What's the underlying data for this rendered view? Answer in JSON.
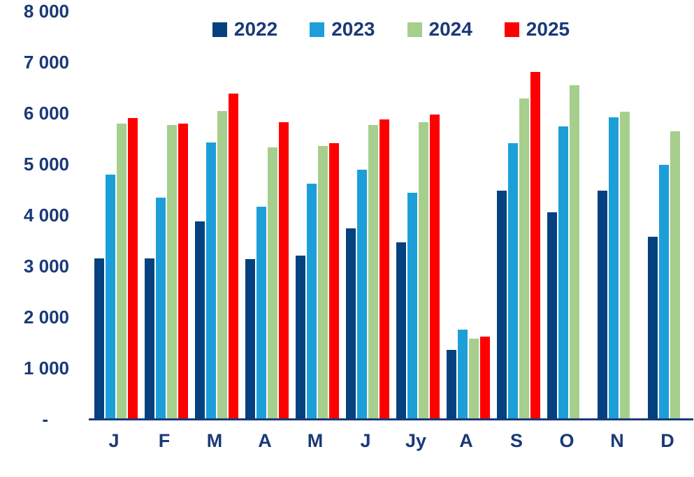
{
  "chart_data": {
    "type": "bar",
    "title": "",
    "xlabel": "",
    "ylabel": "",
    "grid": false,
    "legend_position": "top-center",
    "background_color": "#ffffff",
    "axis_color": "#1B3978",
    "label_color": "#1B3978",
    "ylim": [
      0,
      8000
    ],
    "y_ticks": [
      {
        "value": 8000,
        "label": "8 000"
      },
      {
        "value": 7000,
        "label": "7 000"
      },
      {
        "value": 6000,
        "label": "6 000"
      },
      {
        "value": 5000,
        "label": "5 000"
      },
      {
        "value": 4000,
        "label": "4 000"
      },
      {
        "value": 3000,
        "label": "3 000"
      },
      {
        "value": 2000,
        "label": "2 000"
      },
      {
        "value": 1000,
        "label": "1 000"
      },
      {
        "value": 0,
        "label": "-"
      }
    ],
    "categories": [
      "J",
      "F",
      "M",
      "A",
      "M",
      "J",
      "Jy",
      "A",
      "S",
      "O",
      "N",
      "D"
    ],
    "series": [
      {
        "name": "2022",
        "color": "#04417E",
        "values": [
          3150,
          3150,
          3870,
          3140,
          3210,
          3740,
          3460,
          1360,
          4480,
          4060,
          4480,
          3570
        ]
      },
      {
        "name": "2023",
        "color": "#1C9FD8",
        "values": [
          4800,
          4340,
          5420,
          4170,
          4610,
          4890,
          4440,
          1750,
          5410,
          5740,
          5920,
          4990
        ]
      },
      {
        "name": "2024",
        "color": "#A6CE8D",
        "values": [
          5800,
          5770,
          6040,
          5330,
          5360,
          5770,
          5820,
          1580,
          6290,
          6550,
          6030,
          5650
        ]
      },
      {
        "name": "2025",
        "color": "#FF0000",
        "values": [
          5900,
          5790,
          6380,
          5820,
          5410,
          5880,
          5970,
          1620,
          6810,
          null,
          null,
          null
        ]
      }
    ]
  }
}
